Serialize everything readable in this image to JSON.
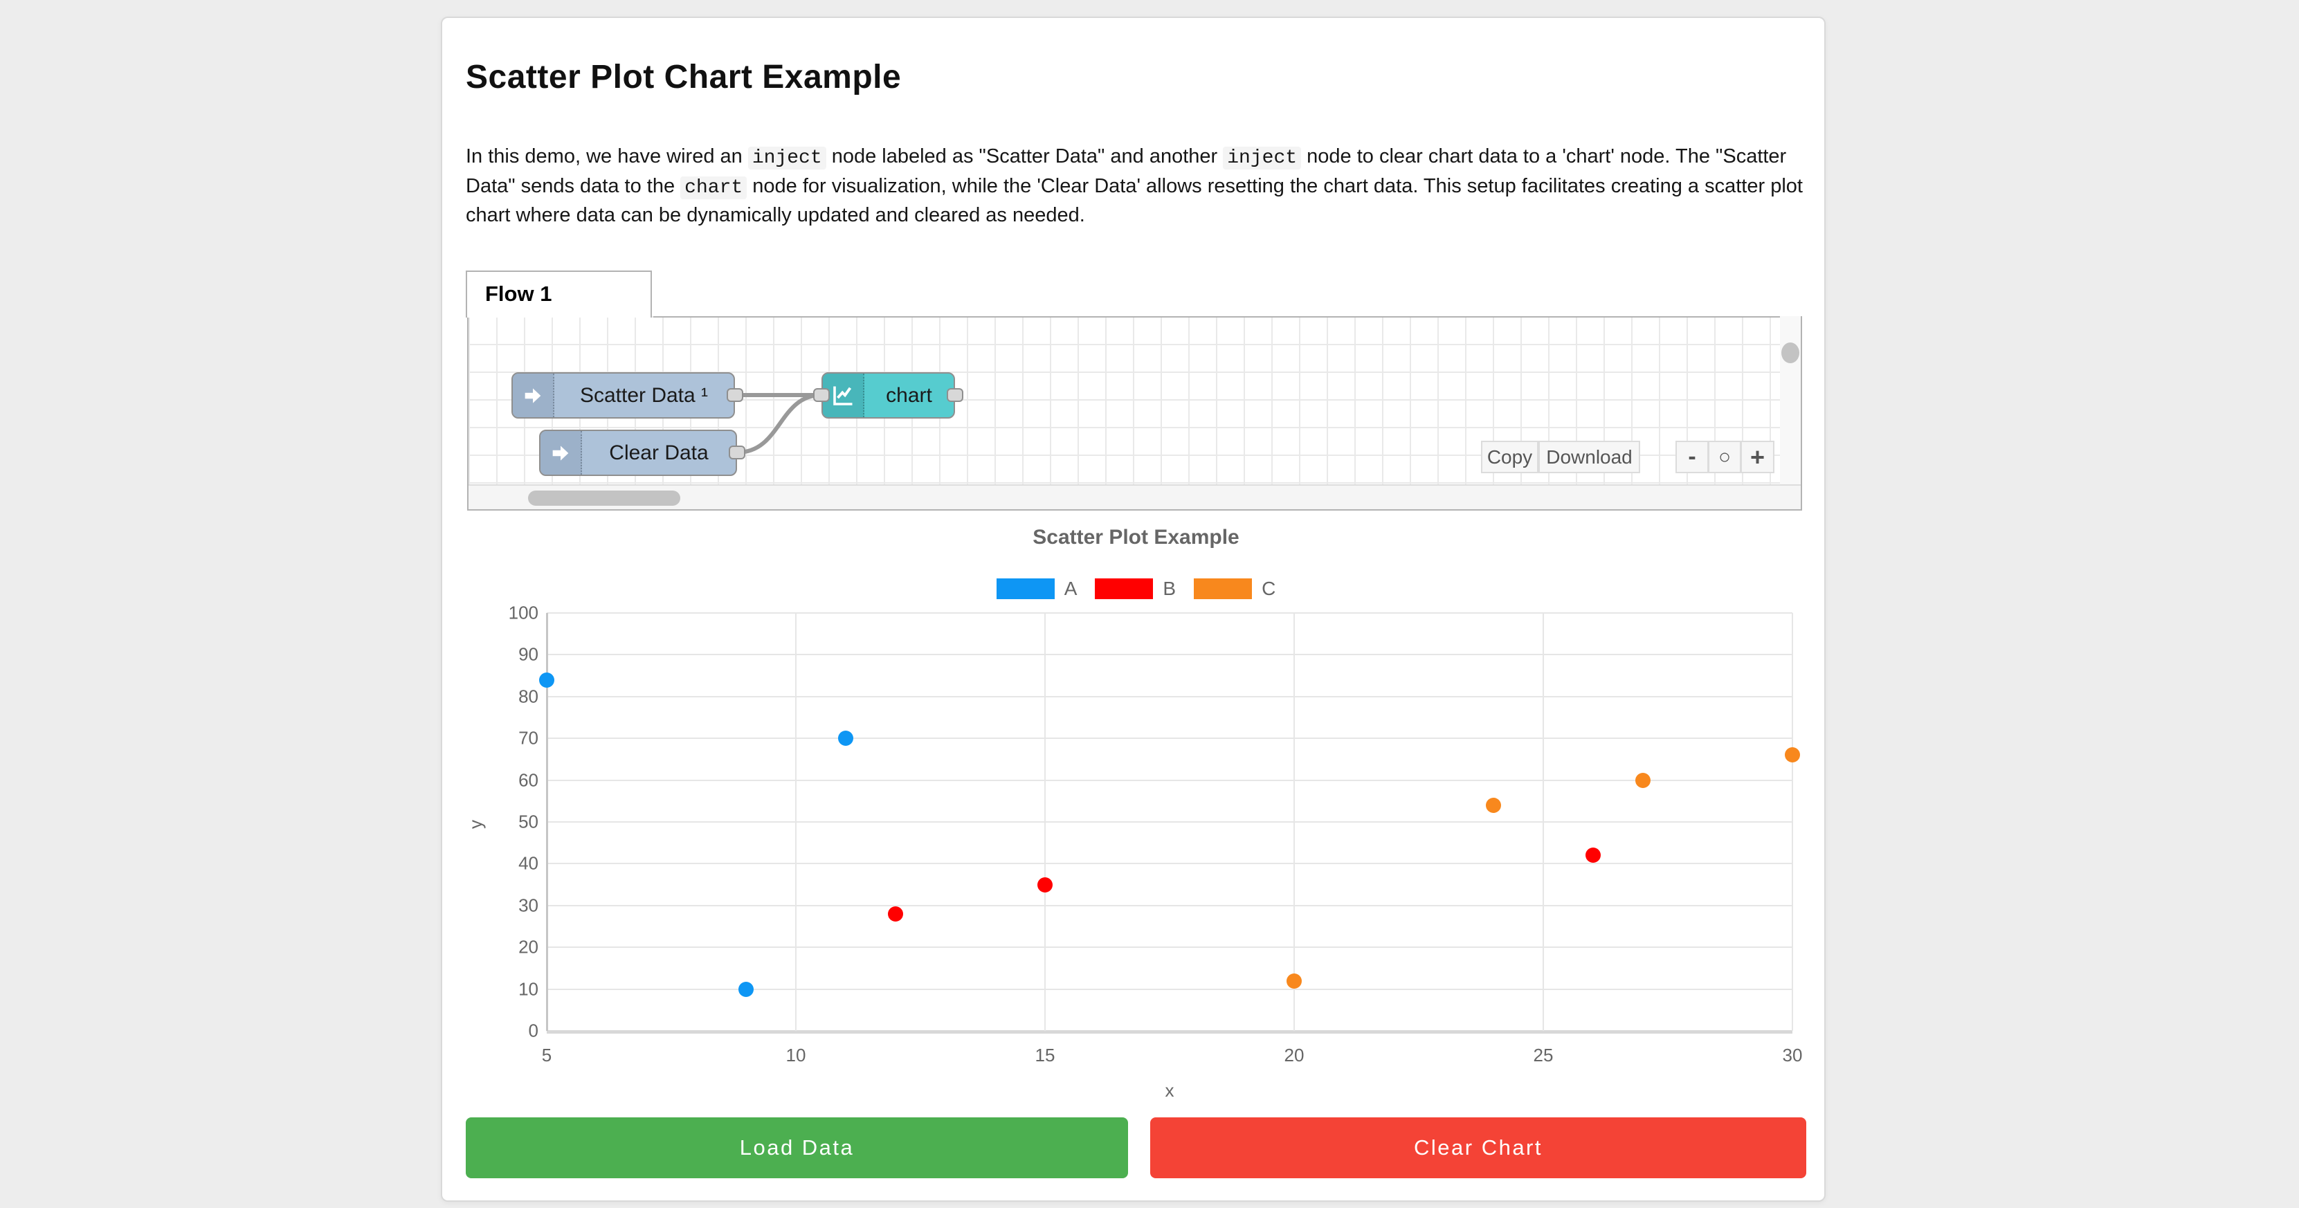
{
  "window": {
    "background": "#ededed",
    "card_background": "#ffffff"
  },
  "header": {
    "title": "Scatter Plot Chart Example"
  },
  "description": {
    "segments": [
      {
        "type": "text",
        "value": "In this demo, we have wired an "
      },
      {
        "type": "code",
        "value": "inject"
      },
      {
        "type": "text",
        "value": " node labeled as \"Scatter Data\" and another "
      },
      {
        "type": "code",
        "value": "inject"
      },
      {
        "type": "text",
        "value": " node to clear chart data to a 'chart' node. The \"Scatter Data\" sends data to the "
      },
      {
        "type": "code",
        "value": "chart"
      },
      {
        "type": "text",
        "value": " node for visualization, while the 'Clear Data' allows resetting the chart data. This setup facilitates creating a scatter plot chart where data can be dynamically updated and cleared as needed."
      }
    ]
  },
  "flow_editor": {
    "tab_label": "Flow 1",
    "nodes": [
      {
        "id": "inject-scatter",
        "type": "inject",
        "label": "Scatter Data ¹",
        "color": "#adc2d9",
        "icon_color": "#9cb1c9"
      },
      {
        "id": "inject-clear",
        "type": "inject",
        "label": "Clear Data",
        "color": "#adc2d9",
        "icon_color": "#9cb1c9"
      },
      {
        "id": "chart-node",
        "type": "chart",
        "label": "chart",
        "color": "#56cccf",
        "icon_color": "#48b6ba"
      }
    ],
    "toolbar": {
      "copy_label": "Copy",
      "download_label": "Download"
    },
    "zoom_controls": {
      "zoom_out": "-",
      "zoom_reset": "○",
      "zoom_in": "+"
    }
  },
  "chart_data": {
    "type": "scatter",
    "title": "Scatter Plot Example",
    "xlabel": "x",
    "ylabel": "y",
    "xlim": [
      5,
      30
    ],
    "ylim": [
      0,
      100
    ],
    "xticks": [
      5,
      10,
      15,
      20,
      25,
      30
    ],
    "yticks": [
      0,
      10,
      20,
      30,
      40,
      50,
      60,
      70,
      80,
      90,
      100
    ],
    "grid": true,
    "legend_position": "top",
    "series": [
      {
        "name": "A",
        "color": "#0e96f4",
        "points": [
          [
            5,
            84
          ],
          [
            9,
            10
          ],
          [
            11,
            70
          ]
        ]
      },
      {
        "name": "B",
        "color": "#ff0000",
        "points": [
          [
            12,
            28
          ],
          [
            15,
            35
          ],
          [
            26,
            42
          ]
        ]
      },
      {
        "name": "C",
        "color": "#f8881d",
        "points": [
          [
            20,
            12
          ],
          [
            24,
            54
          ],
          [
            27,
            60
          ],
          [
            30,
            66
          ]
        ]
      }
    ]
  },
  "actions": {
    "load_label": "Load Data",
    "clear_label": "Clear Chart",
    "load_color": "#4caf50",
    "clear_color": "#f44336"
  }
}
